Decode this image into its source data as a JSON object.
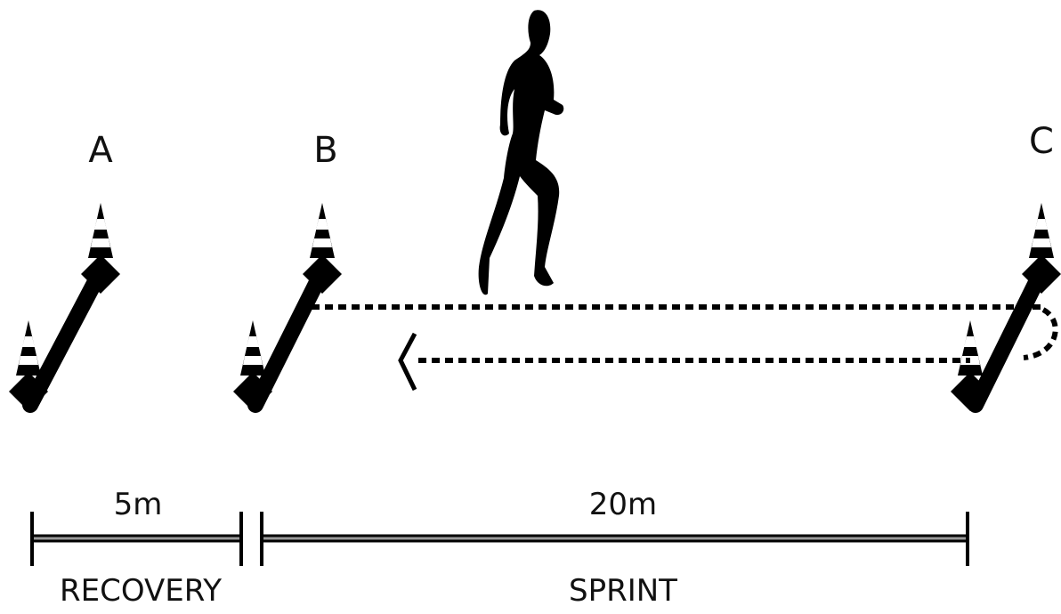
{
  "stations": [
    {
      "label": "A"
    },
    {
      "label": "B"
    },
    {
      "label": "C"
    }
  ],
  "segments": [
    {
      "distance": "5m",
      "label": "RECOVERY"
    },
    {
      "distance": "20m",
      "label": "SPRINT"
    }
  ]
}
